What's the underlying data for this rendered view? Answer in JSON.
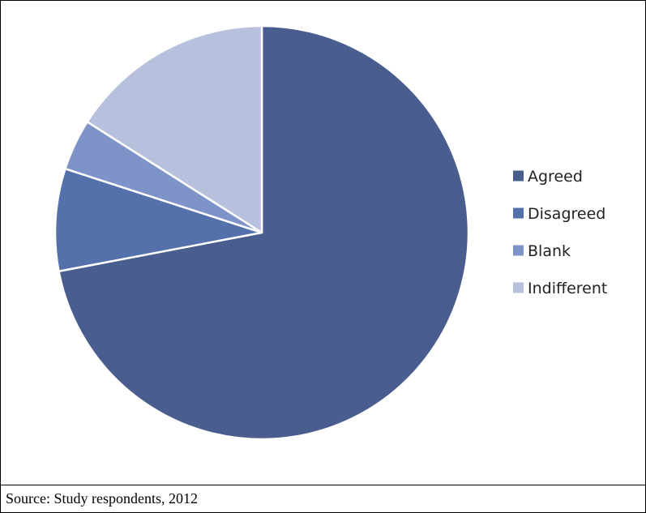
{
  "caption": "Source: Study respondents, 2012",
  "chart_data": {
    "type": "pie",
    "categories": [
      "Agreed",
      "Disagreed",
      "Blank",
      "Indifferent"
    ],
    "values": [
      72,
      8,
      4,
      16
    ],
    "colors": [
      "#4a5d8f",
      "#5571ab",
      "#7e94c8",
      "#b7c1dd"
    ],
    "legend_position": "right",
    "slice_border_color": "#ffffff"
  }
}
